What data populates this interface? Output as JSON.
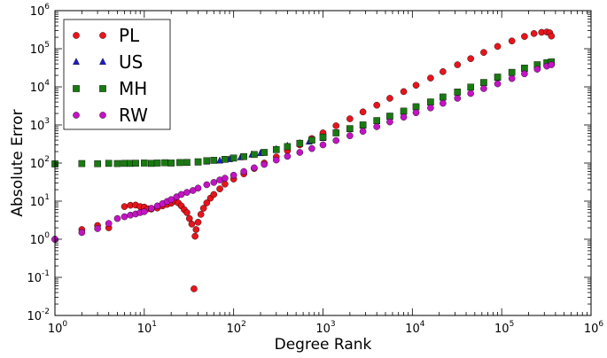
{
  "chart_data": {
    "type": "scatter",
    "xlabel": "Degree Rank",
    "ylabel": "Absolute Error",
    "xscale": "log",
    "yscale": "log",
    "xlim": [
      1,
      1000000
    ],
    "ylim": [
      0.01,
      1000000
    ],
    "x_ticks": [
      {
        "value": 1,
        "base": "10",
        "exp": "0"
      },
      {
        "value": 10,
        "base": "10",
        "exp": "1"
      },
      {
        "value": 100,
        "base": "10",
        "exp": "2"
      },
      {
        "value": 1000,
        "base": "10",
        "exp": "3"
      },
      {
        "value": 10000,
        "base": "10",
        "exp": "4"
      },
      {
        "value": 100000,
        "base": "10",
        "exp": "5"
      },
      {
        "value": 1000000,
        "base": "10",
        "exp": "6"
      }
    ],
    "y_ticks": [
      {
        "value": 0.01,
        "base": "10",
        "exp": "-2"
      },
      {
        "value": 0.1,
        "base": "10",
        "exp": "-1"
      },
      {
        "value": 1,
        "base": "10",
        "exp": "0"
      },
      {
        "value": 10,
        "base": "10",
        "exp": "1"
      },
      {
        "value": 100,
        "base": "10",
        "exp": "2"
      },
      {
        "value": 1000,
        "base": "10",
        "exp": "3"
      },
      {
        "value": 10000,
        "base": "10",
        "exp": "4"
      },
      {
        "value": 100000,
        "base": "10",
        "exp": "5"
      },
      {
        "value": 1000000,
        "base": "10",
        "exp": "6"
      }
    ],
    "grid": false,
    "legend_position": "top-left",
    "series": [
      {
        "name": "PL",
        "marker": "circle",
        "color": "#e8141c",
        "points": [
          [
            1,
            1.0
          ],
          [
            2,
            1.8
          ],
          [
            3,
            2.3
          ],
          [
            4,
            2.0
          ],
          [
            6,
            7.2
          ],
          [
            7,
            7.8
          ],
          [
            8,
            7.9
          ],
          [
            9,
            7.2
          ],
          [
            10,
            7.0
          ],
          [
            11,
            6.3
          ],
          [
            12,
            6.2
          ],
          [
            14,
            6.6
          ],
          [
            16,
            7.5
          ],
          [
            18,
            8.2
          ],
          [
            20,
            8.8
          ],
          [
            22,
            10.0
          ],
          [
            24,
            9.0
          ],
          [
            26,
            7.5
          ],
          [
            28,
            6.0
          ],
          [
            30,
            5.0
          ],
          [
            32,
            3.5
          ],
          [
            34,
            2.5
          ],
          [
            36,
            0.05
          ],
          [
            37,
            1.2
          ],
          [
            38,
            1.8
          ],
          [
            40,
            2.8
          ],
          [
            43,
            4.5
          ],
          [
            46,
            6.5
          ],
          [
            50,
            9.0
          ],
          [
            55,
            12
          ],
          [
            60,
            15
          ],
          [
            70,
            21
          ],
          [
            80,
            28
          ],
          [
            100,
            38
          ],
          [
            130,
            52
          ],
          [
            170,
            72
          ],
          [
            220,
            100
          ],
          [
            300,
            145
          ],
          [
            400,
            210
          ],
          [
            550,
            300
          ],
          [
            750,
            440
          ],
          [
            1000,
            620
          ],
          [
            1400,
            950
          ],
          [
            2000,
            1450
          ],
          [
            2800,
            2200
          ],
          [
            4000,
            3300
          ],
          [
            5600,
            5000
          ],
          [
            8000,
            7500
          ],
          [
            11000,
            11000
          ],
          [
            16000,
            17000
          ],
          [
            22000,
            25000
          ],
          [
            32000,
            38000
          ],
          [
            45000,
            55000
          ],
          [
            63000,
            80000
          ],
          [
            90000,
            115000
          ],
          [
            130000,
            160000
          ],
          [
            180000,
            210000
          ],
          [
            230000,
            250000
          ],
          [
            280000,
            270000
          ],
          [
            320000,
            275000
          ],
          [
            345000,
            262000
          ],
          [
            360000,
            215000
          ]
        ]
      },
      {
        "name": "US",
        "marker": "triangle",
        "color": "#1c1cd4",
        "points": [
          [
            30,
            100
          ],
          [
            40,
            102
          ],
          [
            50,
            108
          ],
          [
            70,
            115
          ],
          [
            90,
            125
          ],
          [
            120,
            140
          ],
          [
            160,
            165
          ],
          [
            200,
            180
          ],
          [
            300,
            230
          ],
          [
            400,
            280
          ],
          [
            550,
            330
          ],
          [
            700,
            360
          ],
          [
            1000,
            450
          ],
          [
            1400,
            600
          ],
          [
            2000,
            760
          ],
          [
            2800,
            950
          ],
          [
            4000,
            1250
          ],
          [
            5600,
            1650
          ],
          [
            8000,
            2200
          ],
          [
            11000,
            2900
          ],
          [
            16000,
            3900
          ],
          [
            22000,
            5200
          ],
          [
            32000,
            7000
          ],
          [
            45000,
            9500
          ],
          [
            63000,
            12500
          ],
          [
            90000,
            17000
          ],
          [
            130000,
            23000
          ],
          [
            180000,
            29000
          ],
          [
            250000,
            36000
          ],
          [
            320000,
            41000
          ],
          [
            360000,
            43000
          ]
        ]
      },
      {
        "name": "MH",
        "marker": "square",
        "color": "#1a7a12",
        "points": [
          [
            1,
            95
          ],
          [
            2,
            97
          ],
          [
            3,
            96
          ],
          [
            4,
            98
          ],
          [
            5,
            97
          ],
          [
            6,
            98
          ],
          [
            7,
            98
          ],
          [
            8,
            99
          ],
          [
            10,
            100
          ],
          [
            12,
            98
          ],
          [
            14,
            100
          ],
          [
            17,
            102
          ],
          [
            20,
            100
          ],
          [
            25,
            103
          ],
          [
            30,
            104
          ],
          [
            40,
            108
          ],
          [
            50,
            115
          ],
          [
            60,
            118
          ],
          [
            80,
            125
          ],
          [
            100,
            135
          ],
          [
            130,
            148
          ],
          [
            170,
            168
          ],
          [
            220,
            190
          ],
          [
            300,
            225
          ],
          [
            400,
            270
          ],
          [
            550,
            330
          ],
          [
            750,
            400
          ],
          [
            1000,
            480
          ],
          [
            1400,
            620
          ],
          [
            2000,
            800
          ],
          [
            2800,
            1000
          ],
          [
            4000,
            1300
          ],
          [
            5600,
            1700
          ],
          [
            8000,
            2300
          ],
          [
            11000,
            3000
          ],
          [
            16000,
            4000
          ],
          [
            22000,
            5400
          ],
          [
            32000,
            7300
          ],
          [
            45000,
            9800
          ],
          [
            63000,
            13000
          ],
          [
            90000,
            18000
          ],
          [
            130000,
            24000
          ],
          [
            180000,
            31000
          ],
          [
            250000,
            38000
          ],
          [
            320000,
            43000
          ],
          [
            360000,
            45000
          ]
        ]
      },
      {
        "name": "RW",
        "marker": "circle",
        "color": "#c314c3",
        "points": [
          [
            1,
            1.0
          ],
          [
            2,
            1.5
          ],
          [
            3,
            1.9
          ],
          [
            4,
            2.6
          ],
          [
            5,
            3.5
          ],
          [
            6,
            3.9
          ],
          [
            7,
            4.3
          ],
          [
            8,
            4.6
          ],
          [
            9,
            5.0
          ],
          [
            10,
            5.3
          ],
          [
            12,
            6.5
          ],
          [
            14,
            7.5
          ],
          [
            16,
            8.6
          ],
          [
            18,
            9.8
          ],
          [
            20,
            11
          ],
          [
            23,
            13
          ],
          [
            26,
            15
          ],
          [
            30,
            17
          ],
          [
            35,
            19
          ],
          [
            40,
            22
          ],
          [
            50,
            27
          ],
          [
            60,
            31
          ],
          [
            70,
            36
          ],
          [
            80,
            40
          ],
          [
            100,
            48
          ],
          [
            130,
            60
          ],
          [
            170,
            75
          ],
          [
            220,
            92
          ],
          [
            300,
            120
          ],
          [
            400,
            150
          ],
          [
            550,
            190
          ],
          [
            750,
            240
          ],
          [
            1000,
            300
          ],
          [
            1400,
            390
          ],
          [
            2000,
            520
          ],
          [
            2800,
            680
          ],
          [
            4000,
            900
          ],
          [
            5600,
            1200
          ],
          [
            8000,
            1600
          ],
          [
            11000,
            2100
          ],
          [
            16000,
            2800
          ],
          [
            22000,
            3700
          ],
          [
            32000,
            5000
          ],
          [
            45000,
            6700
          ],
          [
            63000,
            9000
          ],
          [
            90000,
            12000
          ],
          [
            130000,
            16500
          ],
          [
            180000,
            22000
          ],
          [
            250000,
            29000
          ],
          [
            320000,
            35000
          ],
          [
            360000,
            38000
          ]
        ]
      }
    ]
  }
}
